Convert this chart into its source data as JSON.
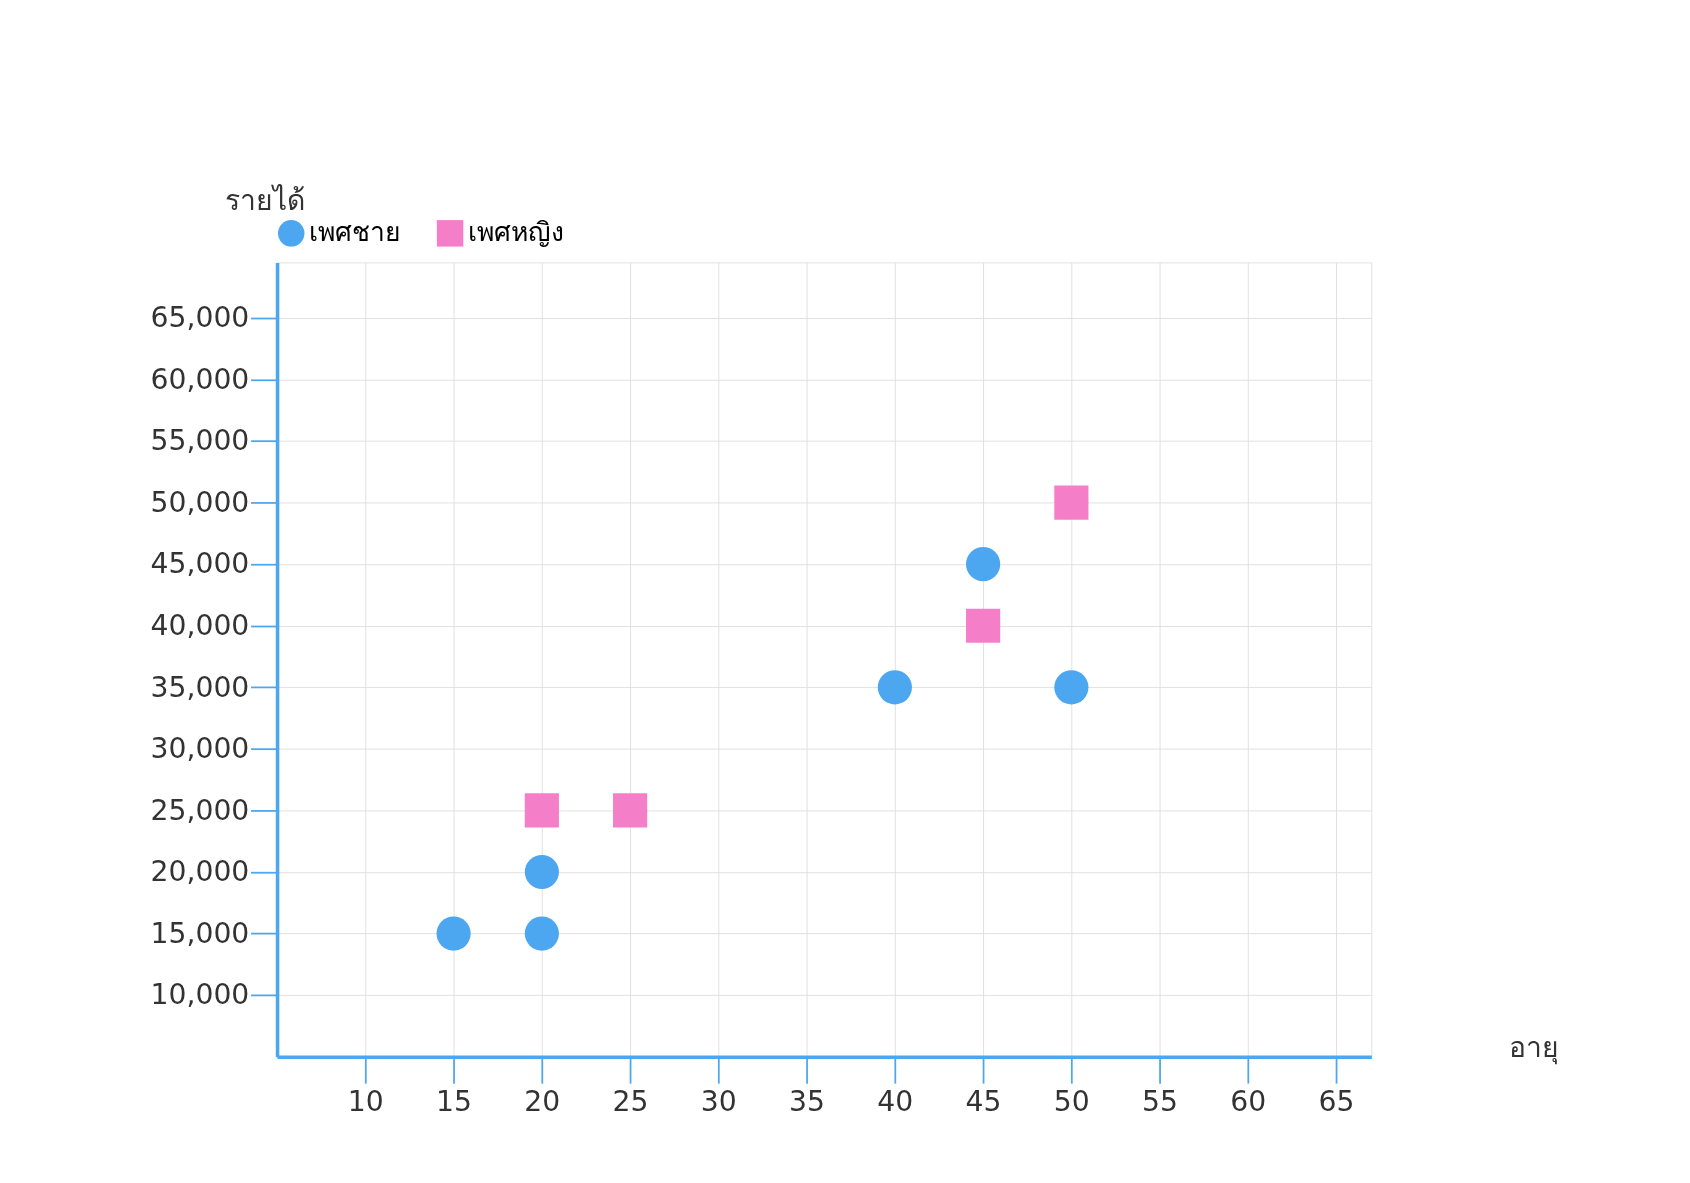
{
  "chart_data": {
    "type": "scatter",
    "xlabel": "อายุ",
    "ylabel": "รายได้",
    "xlim": [
      5,
      67
    ],
    "xticks": [
      10,
      15,
      20,
      25,
      30,
      35,
      40,
      45,
      50,
      55,
      60,
      65
    ],
    "ylim": [
      5000,
      69500
    ],
    "yticks": [
      {
        "value": 10000,
        "label": "10,000"
      },
      {
        "value": 15000,
        "label": "15,000"
      },
      {
        "value": 20000,
        "label": "20,000"
      },
      {
        "value": 25000,
        "label": "25,000"
      },
      {
        "value": 30000,
        "label": "30,000"
      },
      {
        "value": 35000,
        "label": "35,000"
      },
      {
        "value": 40000,
        "label": "40,000"
      },
      {
        "value": 45000,
        "label": "45,000"
      },
      {
        "value": 50000,
        "label": "50,000"
      },
      {
        "value": 55000,
        "label": "55,000"
      },
      {
        "value": 60000,
        "label": "60,000"
      },
      {
        "value": 65000,
        "label": "65,000"
      }
    ],
    "grid": true,
    "legend": "top",
    "series": [
      {
        "name": "เพศชาย",
        "color": "#4da6f0",
        "marker": "circle",
        "x": [
          15,
          20,
          20,
          40,
          45,
          50
        ],
        "values": [
          15000,
          15000,
          20000,
          35000,
          45000,
          35000
        ]
      },
      {
        "name": "เพศหญิง",
        "color": "#f47fc8",
        "marker": "square",
        "x": [
          20,
          25,
          45,
          50
        ],
        "values": [
          25000,
          25000,
          40000,
          50000
        ]
      }
    ]
  }
}
